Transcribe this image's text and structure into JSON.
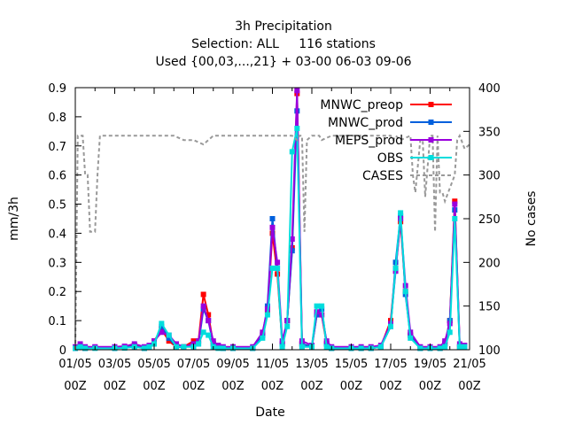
{
  "chart_data": {
    "type": "line",
    "title_lines": [
      "3h Precipitation",
      "Selection: ALL     116 stations",
      "Used {00,03,...,21} + 03-00 06-03 09-06"
    ],
    "xlabel": "Date",
    "ylabel": "mm/3h",
    "y2label": "No cases",
    "ylim": [
      0,
      0.9
    ],
    "y2lim": [
      100,
      400
    ],
    "xlim": [
      "2019-05-01 00:00",
      "2019-05-21 00:00"
    ],
    "x_tick_labels": [
      [
        "01/05",
        "00Z"
      ],
      [
        "03/05",
        "00Z"
      ],
      [
        "05/05",
        "00Z"
      ],
      [
        "07/05",
        "00Z"
      ],
      [
        "09/05",
        "00Z"
      ],
      [
        "11/05",
        "00Z"
      ],
      [
        "13/05",
        "00Z"
      ],
      [
        "15/05",
        "00Z"
      ],
      [
        "17/05",
        "00Z"
      ],
      [
        "19/05",
        "00Z"
      ],
      [
        "21/05",
        "00Z"
      ]
    ],
    "y_ticks": [
      "0",
      "0.1",
      "0.2",
      "0.3",
      "0.4",
      "0.5",
      "0.6",
      "0.7",
      "0.8",
      "0.9"
    ],
    "y2_ticks": [
      "100",
      "150",
      "200",
      "250",
      "300",
      "350",
      "400"
    ],
    "legend_position": "top-right",
    "series": [
      {
        "name": "MNWC_preop",
        "color": "#ff0000",
        "axis": "y",
        "x": [
          "2019-05-01 00:00",
          "2019-05-01 06:00",
          "2019-05-01 12:00",
          "2019-05-02 00:00",
          "2019-05-03 00:00",
          "2019-05-03 12:00",
          "2019-05-04 00:00",
          "2019-05-04 12:00",
          "2019-05-04 18:00",
          "2019-05-05 00:00",
          "2019-05-05 09:00",
          "2019-05-05 18:00",
          "2019-05-06 03:00",
          "2019-05-06 12:00",
          "2019-05-07 00:00",
          "2019-05-07 06:00",
          "2019-05-07 12:00",
          "2019-05-07 18:00",
          "2019-05-08 00:00",
          "2019-05-08 06:00",
          "2019-05-08 12:00",
          "2019-05-09 00:00",
          "2019-05-10 00:00",
          "2019-05-10 12:00",
          "2019-05-10 18:00",
          "2019-05-11 00:00",
          "2019-05-11 06:00",
          "2019-05-11 12:00",
          "2019-05-11 18:00",
          "2019-05-12 00:00",
          "2019-05-12 06:00",
          "2019-05-12 12:00",
          "2019-05-13 00:00",
          "2019-05-13 06:00",
          "2019-05-13 12:00",
          "2019-05-13 18:00",
          "2019-05-14 00:00",
          "2019-05-15 00:00",
          "2019-05-15 12:00",
          "2019-05-16 00:00",
          "2019-05-16 12:00",
          "2019-05-17 00:00",
          "2019-05-17 06:00",
          "2019-05-17 12:00",
          "2019-05-17 18:00",
          "2019-05-18 00:00",
          "2019-05-18 12:00",
          "2019-05-19 00:00",
          "2019-05-19 12:00",
          "2019-05-19 18:00",
          "2019-05-20 00:00",
          "2019-05-20 06:00",
          "2019-05-20 12:00",
          "2019-05-20 18:00"
        ],
        "values": [
          0.005,
          0.01,
          0.005,
          0.008,
          0.005,
          0.008,
          0.015,
          0.005,
          0.01,
          0.03,
          0.07,
          0.03,
          0.01,
          0.01,
          0.03,
          0.03,
          0.19,
          0.12,
          0.02,
          0.01,
          0.005,
          0.005,
          0.005,
          0.05,
          0.13,
          0.4,
          0.26,
          0.02,
          0.1,
          0.35,
          0.88,
          0.02,
          0.01,
          0.12,
          0.12,
          0.02,
          0.005,
          0.005,
          0.005,
          0.005,
          0.01,
          0.1,
          0.28,
          0.44,
          0.2,
          0.05,
          0.005,
          0.005,
          0.005,
          0.02,
          0.1,
          0.51,
          0.01,
          0.01
        ]
      },
      {
        "name": "MNWC_prod",
        "color": "#0060dd",
        "axis": "y",
        "x": [
          "2019-05-01 00:00",
          "2019-05-01 06:00",
          "2019-05-01 12:00",
          "2019-05-02 00:00",
          "2019-05-03 00:00",
          "2019-05-03 12:00",
          "2019-05-04 00:00",
          "2019-05-04 12:00",
          "2019-05-04 18:00",
          "2019-05-05 00:00",
          "2019-05-05 09:00",
          "2019-05-05 18:00",
          "2019-05-06 03:00",
          "2019-05-06 12:00",
          "2019-05-07 00:00",
          "2019-05-07 06:00",
          "2019-05-07 12:00",
          "2019-05-07 18:00",
          "2019-05-08 00:00",
          "2019-05-08 06:00",
          "2019-05-08 12:00",
          "2019-05-09 00:00",
          "2019-05-10 00:00",
          "2019-05-10 12:00",
          "2019-05-10 18:00",
          "2019-05-11 00:00",
          "2019-05-11 06:00",
          "2019-05-11 12:00",
          "2019-05-11 18:00",
          "2019-05-12 00:00",
          "2019-05-12 06:00",
          "2019-05-12 12:00",
          "2019-05-13 00:00",
          "2019-05-13 06:00",
          "2019-05-13 12:00",
          "2019-05-13 18:00",
          "2019-05-14 00:00",
          "2019-05-15 00:00",
          "2019-05-15 12:00",
          "2019-05-16 00:00",
          "2019-05-16 12:00",
          "2019-05-17 00:00",
          "2019-05-17 06:00",
          "2019-05-17 12:00",
          "2019-05-17 18:00",
          "2019-05-18 00:00",
          "2019-05-18 12:00",
          "2019-05-19 00:00",
          "2019-05-19 12:00",
          "2019-05-19 18:00",
          "2019-05-20 00:00",
          "2019-05-20 06:00",
          "2019-05-20 12:00",
          "2019-05-20 18:00"
        ],
        "values": [
          0.005,
          0.012,
          0.005,
          0.008,
          0.005,
          0.008,
          0.012,
          0.005,
          0.01,
          0.02,
          0.08,
          0.04,
          0.01,
          0.008,
          0.02,
          0.02,
          0.14,
          0.1,
          0.02,
          0.01,
          0.005,
          0.005,
          0.005,
          0.05,
          0.15,
          0.45,
          0.28,
          0.02,
          0.1,
          0.34,
          0.82,
          0.02,
          0.01,
          0.12,
          0.14,
          0.02,
          0.005,
          0.005,
          0.005,
          0.005,
          0.01,
          0.08,
          0.3,
          0.46,
          0.19,
          0.05,
          0.005,
          0.005,
          0.005,
          0.02,
          0.1,
          0.48,
          0.01,
          0.01
        ]
      },
      {
        "name": "MEPS_prod",
        "color": "#9a00dd",
        "axis": "y",
        "x": [
          "2019-05-01 00:00",
          "2019-05-01 06:00",
          "2019-05-01 12:00",
          "2019-05-02 00:00",
          "2019-05-03 00:00",
          "2019-05-03 12:00",
          "2019-05-04 00:00",
          "2019-05-04 12:00",
          "2019-05-04 18:00",
          "2019-05-05 00:00",
          "2019-05-05 09:00",
          "2019-05-05 18:00",
          "2019-05-06 03:00",
          "2019-05-06 12:00",
          "2019-05-07 00:00",
          "2019-05-07 06:00",
          "2019-05-07 12:00",
          "2019-05-07 18:00",
          "2019-05-08 00:00",
          "2019-05-08 06:00",
          "2019-05-08 12:00",
          "2019-05-09 00:00",
          "2019-05-10 00:00",
          "2019-05-10 12:00",
          "2019-05-10 18:00",
          "2019-05-11 00:00",
          "2019-05-11 06:00",
          "2019-05-11 12:00",
          "2019-05-11 18:00",
          "2019-05-12 00:00",
          "2019-05-12 06:00",
          "2019-05-12 12:00",
          "2019-05-13 00:00",
          "2019-05-13 06:00",
          "2019-05-13 12:00",
          "2019-05-13 18:00",
          "2019-05-14 00:00",
          "2019-05-15 00:00",
          "2019-05-15 12:00",
          "2019-05-16 00:00",
          "2019-05-16 12:00",
          "2019-05-17 00:00",
          "2019-05-17 06:00",
          "2019-05-17 12:00",
          "2019-05-17 18:00",
          "2019-05-18 00:00",
          "2019-05-18 12:00",
          "2019-05-19 00:00",
          "2019-05-19 12:00",
          "2019-05-19 18:00",
          "2019-05-20 00:00",
          "2019-05-20 06:00",
          "2019-05-20 12:00",
          "2019-05-20 18:00"
        ],
        "values": [
          0.01,
          0.02,
          0.01,
          0.01,
          0.01,
          0.012,
          0.02,
          0.01,
          0.015,
          0.03,
          0.06,
          0.05,
          0.02,
          0.01,
          0.02,
          0.03,
          0.15,
          0.1,
          0.03,
          0.015,
          0.01,
          0.01,
          0.01,
          0.06,
          0.14,
          0.42,
          0.3,
          0.03,
          0.1,
          0.38,
          0.89,
          0.03,
          0.015,
          0.13,
          0.12,
          0.03,
          0.01,
          0.01,
          0.01,
          0.01,
          0.015,
          0.09,
          0.27,
          0.45,
          0.22,
          0.06,
          0.01,
          0.01,
          0.01,
          0.03,
          0.09,
          0.5,
          0.02,
          0.015
        ]
      },
      {
        "name": "OBS",
        "color": "#00dddd",
        "axis": "y",
        "x": [
          "2019-05-01 00:00",
          "2019-05-01 06:00",
          "2019-05-01 12:00",
          "2019-05-02 00:00",
          "2019-05-03 00:00",
          "2019-05-03 12:00",
          "2019-05-04 00:00",
          "2019-05-04 12:00",
          "2019-05-04 18:00",
          "2019-05-05 00:00",
          "2019-05-05 09:00",
          "2019-05-05 18:00",
          "2019-05-06 03:00",
          "2019-05-06 12:00",
          "2019-05-07 00:00",
          "2019-05-07 06:00",
          "2019-05-07 12:00",
          "2019-05-07 18:00",
          "2019-05-08 00:00",
          "2019-05-08 06:00",
          "2019-05-08 12:00",
          "2019-05-09 00:00",
          "2019-05-10 00:00",
          "2019-05-10 12:00",
          "2019-05-10 18:00",
          "2019-05-11 00:00",
          "2019-05-11 06:00",
          "2019-05-11 12:00",
          "2019-05-11 18:00",
          "2019-05-12 00:00",
          "2019-05-12 06:00",
          "2019-05-12 12:00",
          "2019-05-13 00:00",
          "2019-05-13 06:00",
          "2019-05-13 12:00",
          "2019-05-13 18:00",
          "2019-05-14 00:00",
          "2019-05-15 00:00",
          "2019-05-15 12:00",
          "2019-05-16 00:00",
          "2019-05-16 12:00",
          "2019-05-17 00:00",
          "2019-05-17 06:00",
          "2019-05-17 12:00",
          "2019-05-17 18:00",
          "2019-05-18 00:00",
          "2019-05-18 12:00",
          "2019-05-19 00:00",
          "2019-05-19 12:00",
          "2019-05-19 18:00",
          "2019-05-20 00:00",
          "2019-05-20 06:00",
          "2019-05-20 12:00",
          "2019-05-20 18:00"
        ],
        "values": [
          0.005,
          0.01,
          0.005,
          0.005,
          0.005,
          0.006,
          0.01,
          0.005,
          0.01,
          0.02,
          0.09,
          0.05,
          0.01,
          0.01,
          0.01,
          0.02,
          0.06,
          0.05,
          0.01,
          0.005,
          0.005,
          0.005,
          0.005,
          0.04,
          0.12,
          0.28,
          0.28,
          0.01,
          0.08,
          0.68,
          0.76,
          0.01,
          0.01,
          0.15,
          0.15,
          0.01,
          0.005,
          0.005,
          0.005,
          0.005,
          0.01,
          0.08,
          0.28,
          0.47,
          0.2,
          0.04,
          0.005,
          0.005,
          0.005,
          0.01,
          0.06,
          0.45,
          0.01,
          0.01
        ]
      },
      {
        "name": "CASES",
        "color": "#999999",
        "axis": "y2",
        "dashed": true,
        "x": [
          "2019-05-01 00:00",
          "2019-05-01 03:00",
          "2019-05-01 06:00",
          "2019-05-01 09:00",
          "2019-05-01 12:00",
          "2019-05-01 15:00",
          "2019-05-01 18:00",
          "2019-05-02 00:00",
          "2019-05-02 03:00",
          "2019-05-02 06:00",
          "2019-05-02 09:00",
          "2019-05-02 12:00",
          "2019-05-02 15:00",
          "2019-05-03 00:00",
          "2019-05-04 00:00",
          "2019-05-05 00:00",
          "2019-05-06 00:00",
          "2019-05-06 12:00",
          "2019-05-07 00:00",
          "2019-05-07 12:00",
          "2019-05-07 18:00",
          "2019-05-08 00:00",
          "2019-05-09 00:00",
          "2019-05-10 00:00",
          "2019-05-11 00:00",
          "2019-05-12 00:00",
          "2019-05-12 06:00",
          "2019-05-12 09:00",
          "2019-05-12 12:00",
          "2019-05-12 15:00",
          "2019-05-12 18:00",
          "2019-05-13 00:00",
          "2019-05-13 03:00",
          "2019-05-13 06:00",
          "2019-05-13 09:00",
          "2019-05-13 12:00",
          "2019-05-14 00:00",
          "2019-05-15 00:00",
          "2019-05-16 00:00",
          "2019-05-17 00:00",
          "2019-05-17 03:00",
          "2019-05-17 06:00",
          "2019-05-17 12:00",
          "2019-05-18 00:00",
          "2019-05-18 03:00",
          "2019-05-18 06:00",
          "2019-05-18 12:00",
          "2019-05-18 15:00",
          "2019-05-18 18:00",
          "2019-05-19 00:00",
          "2019-05-19 03:00",
          "2019-05-19 06:00",
          "2019-05-19 09:00",
          "2019-05-19 12:00",
          "2019-05-19 15:00",
          "2019-05-19 18:00",
          "2019-05-20 00:00",
          "2019-05-20 06:00",
          "2019-05-20 09:00",
          "2019-05-20 12:00",
          "2019-05-20 18:00",
          "2019-05-21 00:00"
        ],
        "values": [
          100,
          345,
          345,
          345,
          300,
          300,
          235,
          235,
          300,
          345,
          345,
          345,
          345,
          345,
          345,
          345,
          345,
          340,
          340,
          335,
          340,
          345,
          345,
          345,
          345,
          345,
          340,
          345,
          345,
          235,
          340,
          345,
          345,
          345,
          345,
          340,
          345,
          345,
          345,
          345,
          340,
          345,
          340,
          345,
          300,
          280,
          340,
          340,
          275,
          345,
          345,
          235,
          345,
          280,
          280,
          270,
          285,
          300,
          340,
          345,
          330,
          335
        ]
      }
    ]
  }
}
